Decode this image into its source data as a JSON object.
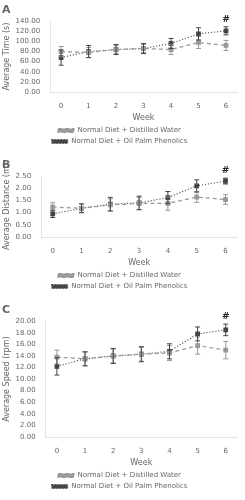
{
  "chart_data": [
    {
      "type": "line",
      "title": "A",
      "x": [
        0,
        1,
        2,
        3,
        4,
        5,
        6
      ],
      "xlim": [
        -0.4,
        6.4
      ],
      "xticks": [
        0,
        1,
        2,
        3,
        4,
        5,
        6
      ],
      "xlabel": "Week",
      "ylabel": "Average Time (s)",
      "ylim": [
        0,
        140
      ],
      "yticks": [
        {
          "value": 0,
          "label": "0.00"
        },
        {
          "value": 20,
          "label": "20.00"
        },
        {
          "value": 40,
          "label": "40.00"
        },
        {
          "value": 60,
          "label": "60.00"
        },
        {
          "value": 80,
          "label": "80.00"
        },
        {
          "value": 100,
          "label": "100.00"
        },
        {
          "value": 120,
          "label": "120.00"
        },
        {
          "value": 140,
          "label": "140.00"
        }
      ],
      "grid": false,
      "legend": "bottom",
      "series": [
        {
          "name": "Normal Diet + Distilled Water",
          "color": "#999999",
          "line_style": "dashed",
          "marker": "square",
          "values": [
            80,
            78,
            84,
            86,
            84,
            98,
            92
          ],
          "errors": [
            10,
            10,
            8,
            8,
            10,
            12,
            10
          ]
        },
        {
          "name": "Normal Diet + Oil Palm Phenolics",
          "color": "#444444",
          "line_style": "dotted",
          "marker": "square",
          "values": [
            68,
            80,
            84,
            86,
            96,
            115,
            121
          ],
          "errors": [
            15,
            12,
            10,
            10,
            10,
            12,
            8
          ]
        }
      ],
      "annotations": [
        {
          "text": "#",
          "x": 6,
          "series": "Normal Diet + Oil Palm Phenolics"
        }
      ]
    },
    {
      "type": "line",
      "title": "B",
      "x": [
        0,
        1,
        2,
        3,
        4,
        5,
        6
      ],
      "xlim": [
        -0.4,
        6.4
      ],
      "xticks": [
        0,
        1,
        2,
        3,
        4,
        5,
        6
      ],
      "xlabel": "Week",
      "ylabel": "Average Distance (m)",
      "ylim": [
        0,
        2.5
      ],
      "yticks": [
        {
          "value": 0,
          "label": "0.00"
        },
        {
          "value": 0.5,
          "label": "0.50"
        },
        {
          "value": 1,
          "label": "1.00"
        },
        {
          "value": 1.5,
          "label": "1.50"
        },
        {
          "value": 2,
          "label": "2.00"
        },
        {
          "value": 2.5,
          "label": "2.50"
        }
      ],
      "grid": false,
      "legend": "bottom",
      "series": [
        {
          "name": "Normal Diet + Distilled Water",
          "color": "#999999",
          "line_style": "dashed",
          "marker": "square",
          "values": [
            1.23,
            1.18,
            1.32,
            1.38,
            1.38,
            1.64,
            1.54
          ],
          "errors": [
            0.18,
            0.18,
            0.25,
            0.25,
            0.28,
            0.22,
            0.2
          ]
        },
        {
          "name": "Normal Diet + Oil Palm Phenolics",
          "color": "#444444",
          "line_style": "dotted",
          "marker": "square",
          "values": [
            0.95,
            1.18,
            1.35,
            1.4,
            1.62,
            2.1,
            2.3
          ],
          "errors": [
            0.15,
            0.18,
            0.28,
            0.28,
            0.25,
            0.25,
            0.12
          ]
        }
      ],
      "annotations": [
        {
          "text": "#",
          "x": 6,
          "series": "Normal Diet + Oil Palm Phenolics"
        }
      ]
    },
    {
      "type": "line",
      "title": "C",
      "x": [
        0,
        1,
        2,
        3,
        4,
        5,
        6
      ],
      "xlim": [
        -0.4,
        6.4
      ],
      "xticks": [
        0,
        1,
        2,
        3,
        4,
        5,
        6
      ],
      "xlabel": "Week",
      "ylabel": "Average Speed (rpm)",
      "ylim": [
        0,
        20
      ],
      "yticks": [
        {
          "value": 0,
          "label": "0.00"
        },
        {
          "value": 2,
          "label": "2.00"
        },
        {
          "value": 4,
          "label": "4.00"
        },
        {
          "value": 6,
          "label": "6.00"
        },
        {
          "value": 8,
          "label": "8.00"
        },
        {
          "value": 10,
          "label": "10.00"
        },
        {
          "value": 12,
          "label": "12.00"
        },
        {
          "value": 14,
          "label": "14.00"
        },
        {
          "value": 16,
          "label": "16.00"
        },
        {
          "value": 18,
          "label": "18.00"
        },
        {
          "value": 20,
          "label": "20.00"
        }
      ],
      "grid": false,
      "legend": "bottom",
      "series": [
        {
          "name": "Normal Diet + Distilled Water",
          "color": "#999999",
          "line_style": "dashed",
          "marker": "square",
          "values": [
            13.8,
            13.5,
            14.0,
            14.3,
            14.5,
            15.8,
            15.0
          ],
          "errors": [
            1.2,
            1.2,
            1.2,
            1.2,
            1.3,
            1.5,
            1.5
          ]
        },
        {
          "name": "Normal Diet + Oil Palm Phenolics",
          "color": "#444444",
          "line_style": "dotted",
          "marker": "square",
          "values": [
            12.2,
            13.5,
            14.0,
            14.3,
            14.8,
            17.8,
            18.5
          ],
          "errors": [
            1.5,
            1.2,
            1.3,
            1.3,
            1.3,
            1.2,
            1.0
          ]
        }
      ],
      "annotations": [
        {
          "text": "#",
          "x": 6,
          "series": "Normal Diet + Oil Palm Phenolics"
        }
      ]
    }
  ]
}
